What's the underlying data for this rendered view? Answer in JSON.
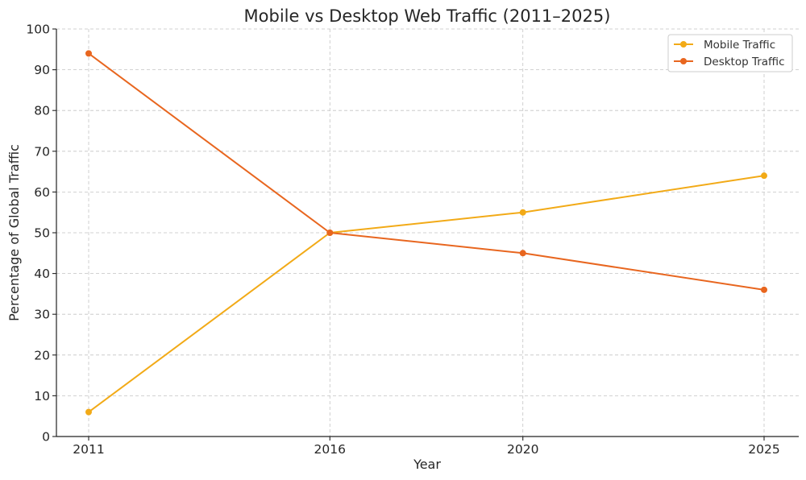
{
  "chart_data": {
    "type": "line",
    "title": "Mobile vs Desktop Web Traffic (2011–2025)",
    "xlabel": "Year",
    "ylabel": "Percentage of Global Traffic",
    "x": [
      2011,
      2016,
      2020,
      2025
    ],
    "x_tick_labels": [
      "2011",
      "2016",
      "2020",
      "2025"
    ],
    "xlim": [
      2011,
      2025
    ],
    "ylim": [
      0,
      100
    ],
    "y_ticks": [
      0,
      10,
      20,
      30,
      40,
      50,
      60,
      70,
      80,
      90,
      100
    ],
    "grid": true,
    "legend_position": "top-right",
    "series": [
      {
        "name": "Mobile Traffic",
        "values": [
          6,
          50,
          55,
          64
        ],
        "color": "#f2aa17"
      },
      {
        "name": "Desktop Traffic",
        "values": [
          94,
          50,
          45,
          36
        ],
        "color": "#e8661f"
      }
    ]
  }
}
